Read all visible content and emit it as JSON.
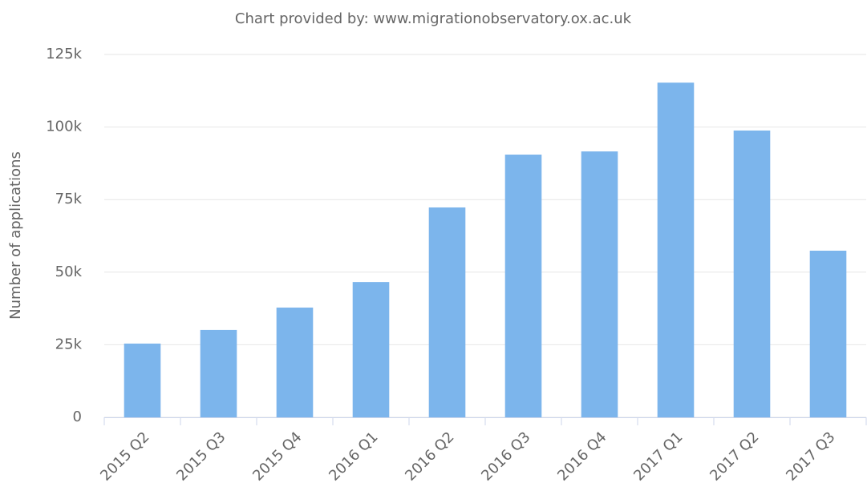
{
  "chart_data": {
    "type": "bar",
    "title": "Chart provided by: www.migrationobservatory.ox.ac.uk",
    "y_label": "Number of applications",
    "categories": [
      "2015 Q2",
      "2015 Q3",
      "2015 Q4",
      "2016 Q1",
      "2016 Q2",
      "2016 Q3",
      "2016 Q4",
      "2017 Q1",
      "2017 Q2",
      "2017 Q3"
    ],
    "values": [
      25400,
      30100,
      37800,
      46600,
      72300,
      90500,
      91600,
      115300,
      98800,
      57400
    ],
    "color": "#7cb5ec",
    "ylim": [
      0,
      125000
    ],
    "yticks": [
      0,
      {
        "value": 25000,
        "label": "25k"
      },
      {
        "value": 50000,
        "label": "50k"
      },
      {
        "value": 75000,
        "label": "75k"
      },
      {
        "value": 100000,
        "label": "100k"
      },
      {
        "value": 125000,
        "label": "125k"
      }
    ],
    "grid": true
  }
}
